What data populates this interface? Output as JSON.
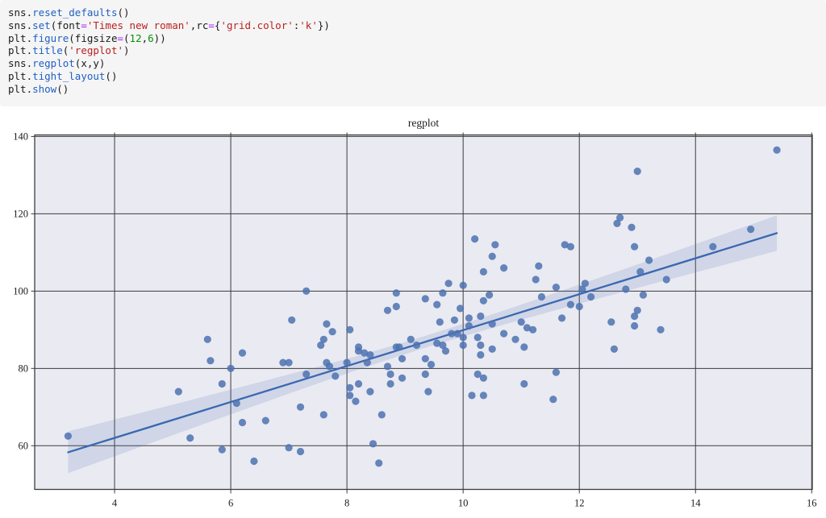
{
  "code_cell": {
    "lines": [
      [
        [
          "sns.",
          "plain"
        ],
        [
          "reset_defaults",
          "func"
        ],
        [
          "()",
          "plain"
        ]
      ],
      [
        [
          "sns.",
          "plain"
        ],
        [
          "set",
          "func"
        ],
        [
          "(font",
          "plain"
        ],
        [
          "=",
          "op"
        ],
        [
          "'Times new roman'",
          "str"
        ],
        [
          ",rc",
          "plain"
        ],
        [
          "=",
          "op"
        ],
        [
          "{",
          "plain"
        ],
        [
          "'grid.color'",
          "str"
        ],
        [
          ":",
          "plain"
        ],
        [
          "'k'",
          "str"
        ],
        [
          "})",
          "plain"
        ]
      ],
      [
        [
          "plt.",
          "plain"
        ],
        [
          "figure",
          "func"
        ],
        [
          "(figsize",
          "plain"
        ],
        [
          "=",
          "op"
        ],
        [
          "(",
          "plain"
        ],
        [
          "12",
          "num"
        ],
        [
          ",",
          "plain"
        ],
        [
          "6",
          "num"
        ],
        [
          "))",
          "plain"
        ]
      ],
      [
        [
          "plt.",
          "plain"
        ],
        [
          "title",
          "func"
        ],
        [
          "(",
          "plain"
        ],
        [
          "'regplot'",
          "str"
        ],
        [
          ")",
          "plain"
        ]
      ],
      [
        [
          "sns.",
          "plain"
        ],
        [
          "regplot",
          "func"
        ],
        [
          "(x,y)",
          "plain"
        ]
      ],
      [
        [
          "plt.",
          "plain"
        ],
        [
          "tight_layout",
          "func"
        ],
        [
          "()",
          "plain"
        ]
      ],
      [
        [
          "plt.",
          "plain"
        ],
        [
          "show",
          "func"
        ],
        [
          "()",
          "plain"
        ]
      ]
    ]
  },
  "chart_data": {
    "type": "scatter",
    "title": "regplot",
    "xlabel": "",
    "ylabel": "",
    "xlim": [
      2.625,
      16.01
    ],
    "ylim": [
      48.7,
      140.4
    ],
    "x_ticks": [
      4,
      6,
      8,
      10,
      12,
      14,
      16
    ],
    "y_ticks": [
      60,
      80,
      100,
      120,
      140
    ],
    "grid": true,
    "colors": {
      "plot_background": "#eaeaf2",
      "grid": "#3c3c3c",
      "point": "#4c72b0",
      "line": "#3a68b0",
      "band": "#4c72b0",
      "tick_label": "#1a1a1a"
    },
    "points": [
      [
        3.2,
        62.5
      ],
      [
        5.1,
        74
      ],
      [
        5.3,
        62
      ],
      [
        5.6,
        87.5
      ],
      [
        5.65,
        82
      ],
      [
        5.85,
        76
      ],
      [
        5.85,
        59
      ],
      [
        6.0,
        80
      ],
      [
        6.1,
        71
      ],
      [
        6.2,
        84
      ],
      [
        6.2,
        66
      ],
      [
        6.4,
        56
      ],
      [
        6.6,
        66.5
      ],
      [
        6.9,
        81.5
      ],
      [
        7.0,
        81.5
      ],
      [
        7.0,
        59.5
      ],
      [
        7.05,
        92.5
      ],
      [
        7.2,
        70
      ],
      [
        7.2,
        58.5
      ],
      [
        7.3,
        100
      ],
      [
        7.3,
        78.5
      ],
      [
        7.55,
        86
      ],
      [
        7.6,
        87.5
      ],
      [
        7.6,
        68
      ],
      [
        7.65,
        91.5
      ],
      [
        7.65,
        81.5
      ],
      [
        7.7,
        80.5
      ],
      [
        7.75,
        89.5
      ],
      [
        7.8,
        78
      ],
      [
        8.0,
        81.5
      ],
      [
        8.05,
        90
      ],
      [
        8.05,
        75
      ],
      [
        8.05,
        73
      ],
      [
        8.15,
        71.5
      ],
      [
        8.2,
        85.5
      ],
      [
        8.2,
        84.5
      ],
      [
        8.2,
        76
      ],
      [
        8.3,
        84
      ],
      [
        8.35,
        81.5
      ],
      [
        8.4,
        83.5
      ],
      [
        8.4,
        74
      ],
      [
        8.45,
        60.5
      ],
      [
        8.55,
        55.5
      ],
      [
        8.6,
        68
      ],
      [
        8.7,
        95
      ],
      [
        8.7,
        80.5
      ],
      [
        8.75,
        78.5
      ],
      [
        8.75,
        76
      ],
      [
        8.85,
        99.5
      ],
      [
        8.85,
        96
      ],
      [
        8.85,
        85.5
      ],
      [
        8.9,
        85.5
      ],
      [
        8.95,
        82.5
      ],
      [
        8.95,
        77.5
      ],
      [
        9.1,
        87.5
      ],
      [
        9.2,
        86
      ],
      [
        9.35,
        98
      ],
      [
        9.35,
        82.5
      ],
      [
        9.35,
        78.5
      ],
      [
        9.4,
        74
      ],
      [
        9.45,
        81
      ],
      [
        9.55,
        96.5
      ],
      [
        9.55,
        86.5
      ],
      [
        9.6,
        92
      ],
      [
        9.65,
        99.5
      ],
      [
        9.65,
        86
      ],
      [
        9.7,
        84.5
      ],
      [
        9.75,
        102
      ],
      [
        9.8,
        89
      ],
      [
        9.85,
        92.5
      ],
      [
        9.9,
        89
      ],
      [
        9.95,
        95.5
      ],
      [
        10.0,
        101.5
      ],
      [
        10.0,
        88
      ],
      [
        10.0,
        86
      ],
      [
        10.1,
        93
      ],
      [
        10.1,
        91
      ],
      [
        10.15,
        73
      ],
      [
        10.2,
        113.5
      ],
      [
        10.25,
        88
      ],
      [
        10.25,
        78.5
      ],
      [
        10.3,
        93.5
      ],
      [
        10.3,
        86
      ],
      [
        10.3,
        83.5
      ],
      [
        10.35,
        105
      ],
      [
        10.35,
        97.5
      ],
      [
        10.35,
        77.5
      ],
      [
        10.35,
        73
      ],
      [
        10.45,
        99
      ],
      [
        10.5,
        109
      ],
      [
        10.5,
        91.5
      ],
      [
        10.5,
        85
      ],
      [
        10.55,
        112
      ],
      [
        10.7,
        106
      ],
      [
        10.7,
        89
      ],
      [
        10.9,
        87.5
      ],
      [
        11.0,
        92
      ],
      [
        11.05,
        85.5
      ],
      [
        11.05,
        76
      ],
      [
        11.1,
        90.5
      ],
      [
        11.2,
        90
      ],
      [
        11.25,
        103
      ],
      [
        11.3,
        106.5
      ],
      [
        11.35,
        98.5
      ],
      [
        11.55,
        72
      ],
      [
        11.6,
        101
      ],
      [
        11.6,
        79
      ],
      [
        11.7,
        93
      ],
      [
        11.75,
        112
      ],
      [
        11.85,
        111.5
      ],
      [
        11.85,
        96.5
      ],
      [
        12.0,
        96
      ],
      [
        12.05,
        100.5
      ],
      [
        12.1,
        102
      ],
      [
        12.2,
        98.5
      ],
      [
        12.55,
        92
      ],
      [
        12.6,
        85
      ],
      [
        12.65,
        117.5
      ],
      [
        12.7,
        119
      ],
      [
        12.8,
        100.5
      ],
      [
        12.9,
        116.5
      ],
      [
        12.95,
        111.5
      ],
      [
        12.95,
        93.5
      ],
      [
        12.95,
        91
      ],
      [
        13.0,
        131
      ],
      [
        13.0,
        95
      ],
      [
        13.05,
        105
      ],
      [
        13.1,
        99
      ],
      [
        13.2,
        108
      ],
      [
        13.4,
        90
      ],
      [
        13.5,
        103
      ],
      [
        14.3,
        111.5
      ],
      [
        14.95,
        116
      ],
      [
        15.4,
        136.5
      ]
    ],
    "regression_line": {
      "x_start": 3.2,
      "y_start": 58.3,
      "x_end": 15.4,
      "y_end": 115.0
    },
    "confidence_band": {
      "center_x": 9.3,
      "half_width_center": 1.55,
      "half_width_left_end": 5.4,
      "half_width_right_end": 4.6
    }
  }
}
